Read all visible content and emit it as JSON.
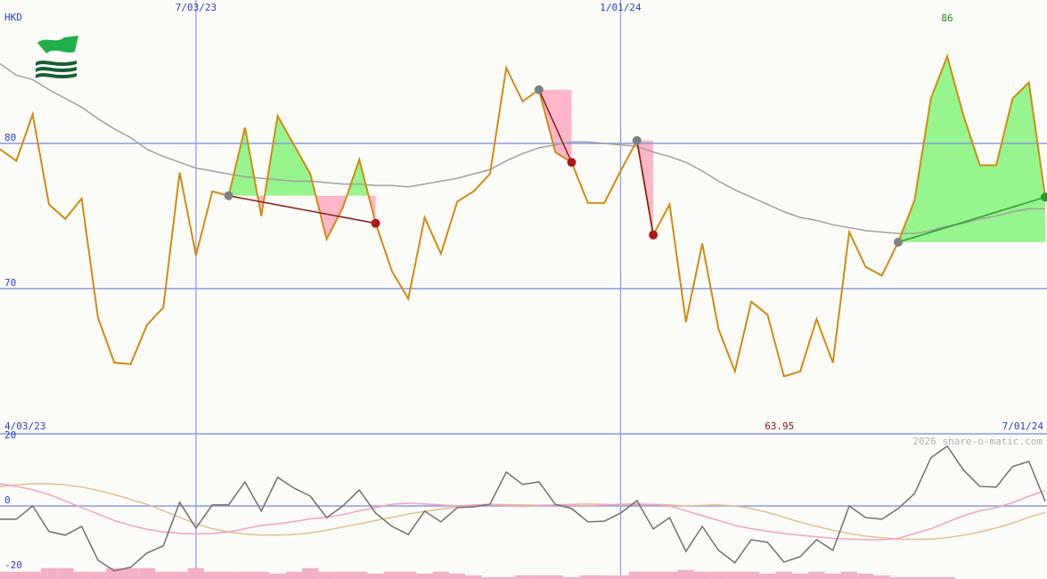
{
  "chart_data": [
    {
      "type": "line",
      "currency": "HKD",
      "x": [
        0,
        1,
        2,
        3,
        4,
        5,
        6,
        7,
        8,
        9,
        10,
        11,
        12,
        13,
        14,
        15,
        16,
        17,
        18,
        19,
        20,
        21,
        22,
        23,
        24,
        25,
        26,
        27,
        28,
        29,
        30,
        31,
        32,
        33,
        34,
        35,
        36,
        37,
        38,
        39,
        40,
        41,
        42,
        43,
        44,
        45,
        46,
        47,
        48,
        49,
        50,
        51,
        52,
        53,
        54,
        55,
        56,
        57,
        58,
        59,
        60,
        61,
        62,
        63,
        64
      ],
      "xlim": [
        0,
        64
      ],
      "xticks": [
        {
          "value": 0,
          "label": "4/03/23"
        },
        {
          "value": 12,
          "label": "7/03/23"
        },
        {
          "value": 38,
          "label": "1/01/24"
        },
        {
          "value": 64,
          "label": "7/01/24"
        }
      ],
      "ylim": [
        60,
        89.88
      ],
      "yticks": [
        70,
        80
      ],
      "grid": true,
      "series": [
        {
          "color": "#d08c10",
          "values": [
            79.6,
            78.8,
            82.0,
            75.8,
            74.8,
            76.2,
            68.0,
            64.9,
            64.8,
            67.5,
            68.7,
            78.0,
            72.3,
            76.7,
            76.4,
            81.1,
            75.0,
            81.9,
            79.9,
            77.9,
            73.4,
            75.6,
            78.9,
            74.5,
            71.2,
            69.3,
            74.9,
            72.4,
            76.0,
            76.7,
            77.9,
            85.2,
            82.9,
            83.7,
            79.4,
            78.7,
            75.9,
            75.9,
            78.1,
            80.2,
            73.7,
            75.8,
            67.7,
            73.1,
            67.2,
            64.3,
            69.1,
            68.2,
            63.95,
            64.3,
            67.9,
            64.9,
            73.9,
            71.5,
            70.9,
            73.2,
            76.1,
            83.1,
            86,
            81.9,
            78.5,
            78.5,
            83.1,
            84.2,
            76.3
          ]
        },
        {
          "color": "#a0a0a0",
          "values": [
            85.5,
            84.7,
            84.4,
            83.7,
            83.1,
            82.5,
            81.7,
            81.0,
            80.4,
            79.6,
            79.1,
            78.7,
            78.3,
            78.1,
            77.9,
            77.7,
            77.6,
            77.5,
            77.4,
            77.4,
            77.3,
            77.2,
            77.2,
            77.1,
            77.1,
            77.0,
            77.2,
            77.4,
            77.6,
            77.9,
            78.2,
            78.8,
            79.3,
            79.7,
            79.9,
            80.1,
            80.1,
            80.0,
            79.9,
            79.8,
            79.4,
            79.1,
            78.7,
            78.1,
            77.4,
            76.8,
            76.3,
            75.8,
            75.3,
            74.9,
            74.7,
            74.4,
            74.2,
            74.0,
            73.9,
            73.8,
            73.8,
            74.0,
            74.3,
            74.5,
            74.8,
            75.0,
            75.3,
            75.5,
            75.5
          ]
        }
      ],
      "signals": [
        {
          "start": 14,
          "end": 23,
          "color": "#8b1a1a"
        },
        {
          "start": 33,
          "end": 35,
          "color": "#8b1a1a"
        },
        {
          "start": 39,
          "end": 40,
          "color": "#8b1a1a"
        },
        {
          "start": 55,
          "end": 64,
          "color": "#22a022"
        }
      ],
      "gain_color": "#96f58c",
      "loss_color": "#ffb6c8",
      "high": 86,
      "low": 63.95
    },
    {
      "type": "line",
      "xlim": [
        0,
        64
      ],
      "ylim": [
        -22.5,
        22.2
      ],
      "yticks": [
        -20,
        0,
        20
      ],
      "zero_line": true,
      "series": [
        {
          "color": "#707070",
          "values": [
            -4.1,
            -4.1,
            0,
            -7.9,
            -9.0,
            -6.3,
            -16.7,
            -20,
            -18.9,
            -14.5,
            -12.3,
            1.1,
            -6.8,
            0.3,
            0.3,
            7.4,
            -1.6,
            8.8,
            5.5,
            3.0,
            -3.6,
            0,
            4.9,
            -2.2,
            -6.3,
            -8.8,
            -1.6,
            -4.9,
            -0.5,
            -0.3,
            0.5,
            10.4,
            6.6,
            7.4,
            0.5,
            -0.8,
            -4.9,
            -4.7,
            -2.2,
            1.6,
            -7.1,
            -3.6,
            -14.0,
            -6.3,
            -13.7,
            -17.5,
            -10.4,
            -11.2,
            -17.3,
            -15.6,
            -10.4,
            -13.7,
            0,
            -3.6,
            -4.1,
            -0.8,
            3.8,
            14.8,
            18.4,
            11.0,
            6.0,
            5.8,
            12.1,
            13.7,
            1.4
          ]
        },
        {
          "color": "#f4a0c0",
          "values": [
            6.8,
            6,
            5,
            3.5,
            1.5,
            -0.5,
            -2.5,
            -4.5,
            -6,
            -7.2,
            -8,
            -8.4,
            -8.6,
            -8.5,
            -8,
            -7,
            -6,
            -5.5,
            -4.8,
            -4,
            -3.5,
            -2.7,
            -1.5,
            -0.5,
            0.5,
            0.8,
            0.6,
            0.3,
            0,
            0.2,
            0.3,
            0.1,
            -0.2,
            0.1,
            0.3,
            0.2,
            0,
            0.3,
            0.5,
            0.6,
            0.4,
            0,
            -1.5,
            -3,
            -4.5,
            -6,
            -7,
            -7.8,
            -8.5,
            -9,
            -9.5,
            -10,
            -10.2,
            -10.4,
            -10.4,
            -10,
            -8.5,
            -7,
            -5,
            -3,
            -1.5,
            -0.5,
            1,
            3,
            4.7
          ]
        },
        {
          "color": "#e0c090",
          "values": [
            6,
            6.5,
            6.8,
            6.8,
            6.5,
            5.8,
            4.8,
            3.5,
            2,
            0.5,
            -1.5,
            -3.5,
            -5.5,
            -7,
            -8,
            -8.7,
            -9,
            -9,
            -8.8,
            -8.3,
            -7.5,
            -6.5,
            -5.5,
            -4.5,
            -3.5,
            -2.5,
            -1.7,
            -1,
            -0.3,
            0.3,
            0.5,
            0.4,
            0.3,
            0.2,
            0.3,
            0.5,
            0.6,
            0.5,
            0.3,
            0.3,
            0.5,
            0.3,
            0,
            0.2,
            0.3,
            0,
            -0.8,
            -2,
            -3.5,
            -5,
            -6.3,
            -7.5,
            -8.5,
            -9.3,
            -9.8,
            -10.2,
            -10.3,
            -10.2,
            -9.8,
            -9,
            -8,
            -6.8,
            -5.3,
            -3.5,
            -2
          ]
        }
      ],
      "volume": {
        "color": "#f4b0c4",
        "lim": [
          0,
          40
        ],
        "values": [
          2,
          2,
          2,
          3,
          3,
          2,
          2,
          3,
          3,
          3,
          2,
          2,
          3,
          2,
          2,
          2,
          2,
          1.5,
          2,
          3,
          2,
          2,
          2,
          1.5,
          2,
          2,
          1.5,
          2,
          1.5,
          1,
          0.5,
          0.5,
          1,
          1,
          1,
          0.5,
          1,
          1,
          1,
          2,
          2,
          2,
          2.5,
          2,
          2,
          2,
          2,
          1.5,
          2,
          1.5,
          2,
          1.5,
          2,
          1.5,
          1,
          0.5,
          0.5,
          0.5,
          0.5,
          0,
          0,
          0,
          0,
          0,
          0
        ]
      }
    }
  ],
  "watermark": "2026 share-o-matic.com"
}
